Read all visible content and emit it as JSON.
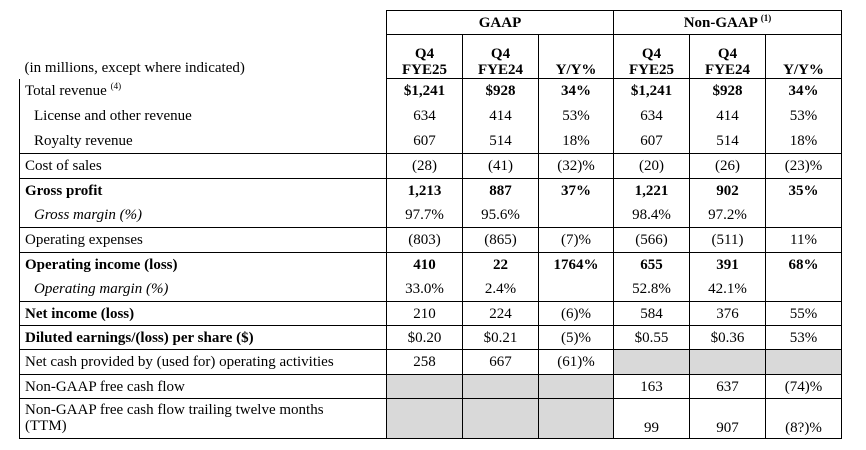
{
  "table": {
    "group_headers": {
      "gaap": "GAAP",
      "non_gaap": "Non-GAAP",
      "non_gaap_note": "(1)"
    },
    "units_label": "(in millions, except where indicated)",
    "columns": [
      {
        "line1": "Q4",
        "line2": "FYE25"
      },
      {
        "line1": "Q4",
        "line2": "FYE24"
      },
      {
        "line1": "",
        "line2": "Y/Y%"
      },
      {
        "line1": "Q4",
        "line2": "FYE25"
      },
      {
        "line1": "Q4",
        "line2": "FYE24"
      },
      {
        "line1": "",
        "line2": "Y/Y%"
      }
    ],
    "rows": [
      {
        "label": "Total revenue",
        "note": "(4)",
        "values": [
          "$1,241",
          "$928",
          "34%",
          "$1,241",
          "$928",
          "34%"
        ]
      },
      {
        "label": "License and other revenue",
        "values": [
          "634",
          "414",
          "53%",
          "634",
          "414",
          "53%"
        ]
      },
      {
        "label": "Royalty revenue",
        "values": [
          "607",
          "514",
          "18%",
          "607",
          "514",
          "18%"
        ]
      },
      {
        "label": "Cost of sales",
        "values": [
          "(28)",
          "(41)",
          "(32)%",
          "(20)",
          "(26)",
          "(23)%"
        ]
      },
      {
        "label": "Gross profit",
        "values": [
          "1,213",
          "887",
          "37%",
          "1,221",
          "902",
          "35%"
        ]
      },
      {
        "label": "Gross margin (%)",
        "values": [
          "97.7%",
          "95.6%",
          "",
          "98.4%",
          "97.2%",
          ""
        ]
      },
      {
        "label": "Operating expenses",
        "values": [
          "(803)",
          "(865)",
          "(7)%",
          "(566)",
          "(511)",
          "11%"
        ]
      },
      {
        "label": "Operating income (loss)",
        "values": [
          "410",
          "22",
          "1764%",
          "655",
          "391",
          "68%"
        ]
      },
      {
        "label": "Operating margin (%)",
        "values": [
          "33.0%",
          "2.4%",
          "",
          "52.8%",
          "42.1%",
          ""
        ]
      },
      {
        "label": "Net income (loss)",
        "values": [
          "210",
          "224",
          "(6)%",
          "584",
          "376",
          "55%"
        ]
      },
      {
        "label": "Diluted earnings/(loss) per share ($)",
        "values": [
          "$0.20",
          "$0.21",
          "(5)%",
          "$0.55",
          "$0.36",
          "53%"
        ]
      },
      {
        "label": "Net cash provided by (used for) operating activities",
        "values": [
          "258",
          "667",
          "(61)%",
          "",
          "",
          ""
        ]
      },
      {
        "label": "Non-GAAP free cash flow",
        "values": [
          "",
          "",
          "",
          "163",
          "637",
          "(74)%"
        ]
      },
      {
        "label_line1": "Non-GAAP free cash flow trailing twelve months",
        "label_line2": "(TTM)",
        "values": [
          "",
          "",
          "",
          "99",
          "907",
          "(8?)%"
        ]
      }
    ]
  }
}
